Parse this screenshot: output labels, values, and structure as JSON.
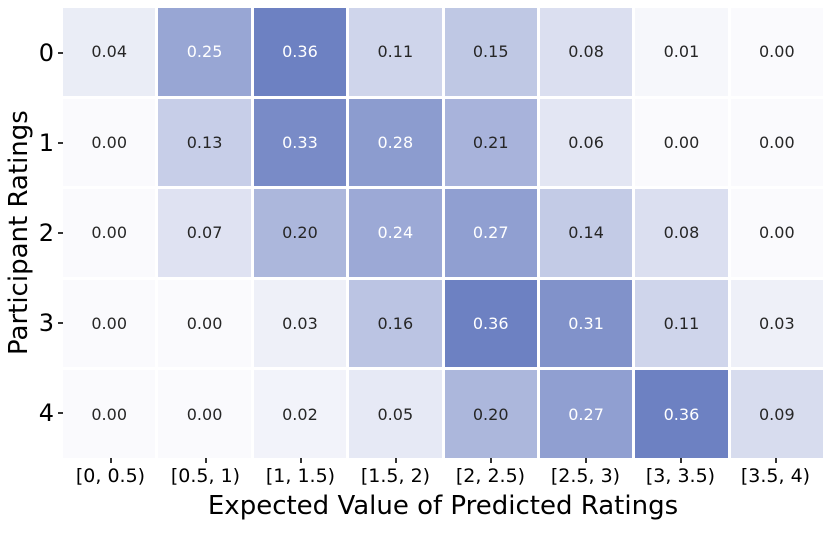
{
  "chart_data": {
    "type": "heatmap",
    "xlabel": "Expected Value of Predicted Ratings",
    "ylabel": "Participant Ratings",
    "x_categories": [
      "[0, 0.5)",
      "[0.5, 1)",
      "[1, 1.5)",
      "[1.5, 2)",
      "[2, 2.5)",
      "[2.5, 3)",
      "[3, 3.5)",
      "[3.5, 4)"
    ],
    "y_categories": [
      "0",
      "1",
      "2",
      "3",
      "4"
    ],
    "matrix": [
      [
        0.04,
        0.25,
        0.36,
        0.11,
        0.15,
        0.08,
        0.01,
        0.0
      ],
      [
        0.0,
        0.13,
        0.33,
        0.28,
        0.21,
        0.06,
        0.0,
        0.0
      ],
      [
        0.0,
        0.07,
        0.2,
        0.24,
        0.27,
        0.14,
        0.08,
        0.0
      ],
      [
        0.0,
        0.0,
        0.03,
        0.16,
        0.36,
        0.31,
        0.11,
        0.03
      ],
      [
        0.0,
        0.0,
        0.02,
        0.05,
        0.2,
        0.27,
        0.36,
        0.09
      ]
    ],
    "value_decimals": 2,
    "colormap": {
      "low": "#fafafd",
      "high": "#6d81c2",
      "vmin": 0,
      "vmax": 0.36
    },
    "annotation_colors": {
      "dark_text": "#262626",
      "light_text": "#ffffff",
      "white_text_threshold": 0.22
    },
    "cell_gap_color": "#ffffff",
    "background": "#ffffff",
    "legend": "none",
    "grid": false
  }
}
